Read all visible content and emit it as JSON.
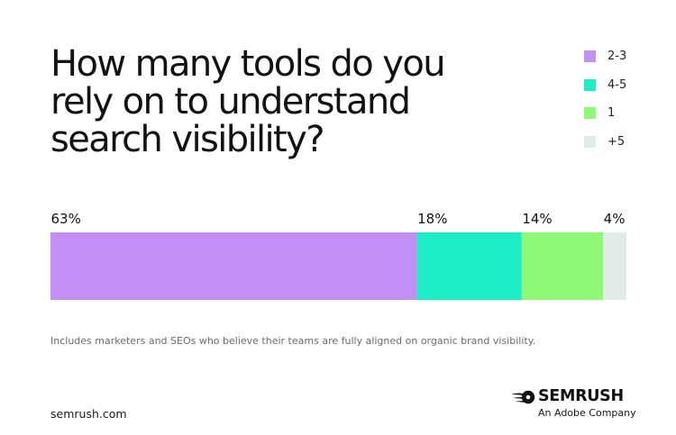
{
  "chart_data": {
    "type": "bar",
    "orientation": "horizontal-stacked",
    "title": "How many tools do you rely on to understand search visibility?",
    "series": [
      {
        "name": "2-3",
        "value": 63,
        "label": "63%",
        "color": "#c28ff5"
      },
      {
        "name": "4-5",
        "value": 18,
        "label": "18%",
        "color": "#1dedc5"
      },
      {
        "name": "1",
        "value": 14,
        "label": "14%",
        "color": "#90f877"
      },
      {
        "name": "+5",
        "value": 4,
        "label": "4%",
        "color": "#e1ecea"
      }
    ],
    "legend_position": "top-right",
    "grid": false
  },
  "footnote": "Includes marketers and SEOs who believe their teams are fully aligned on organic brand visibility.",
  "site": "semrush.com",
  "brand": {
    "name": "SEMRUSH",
    "tagline": "An Adobe Company",
    "icon": "semrush-flame-icon"
  }
}
